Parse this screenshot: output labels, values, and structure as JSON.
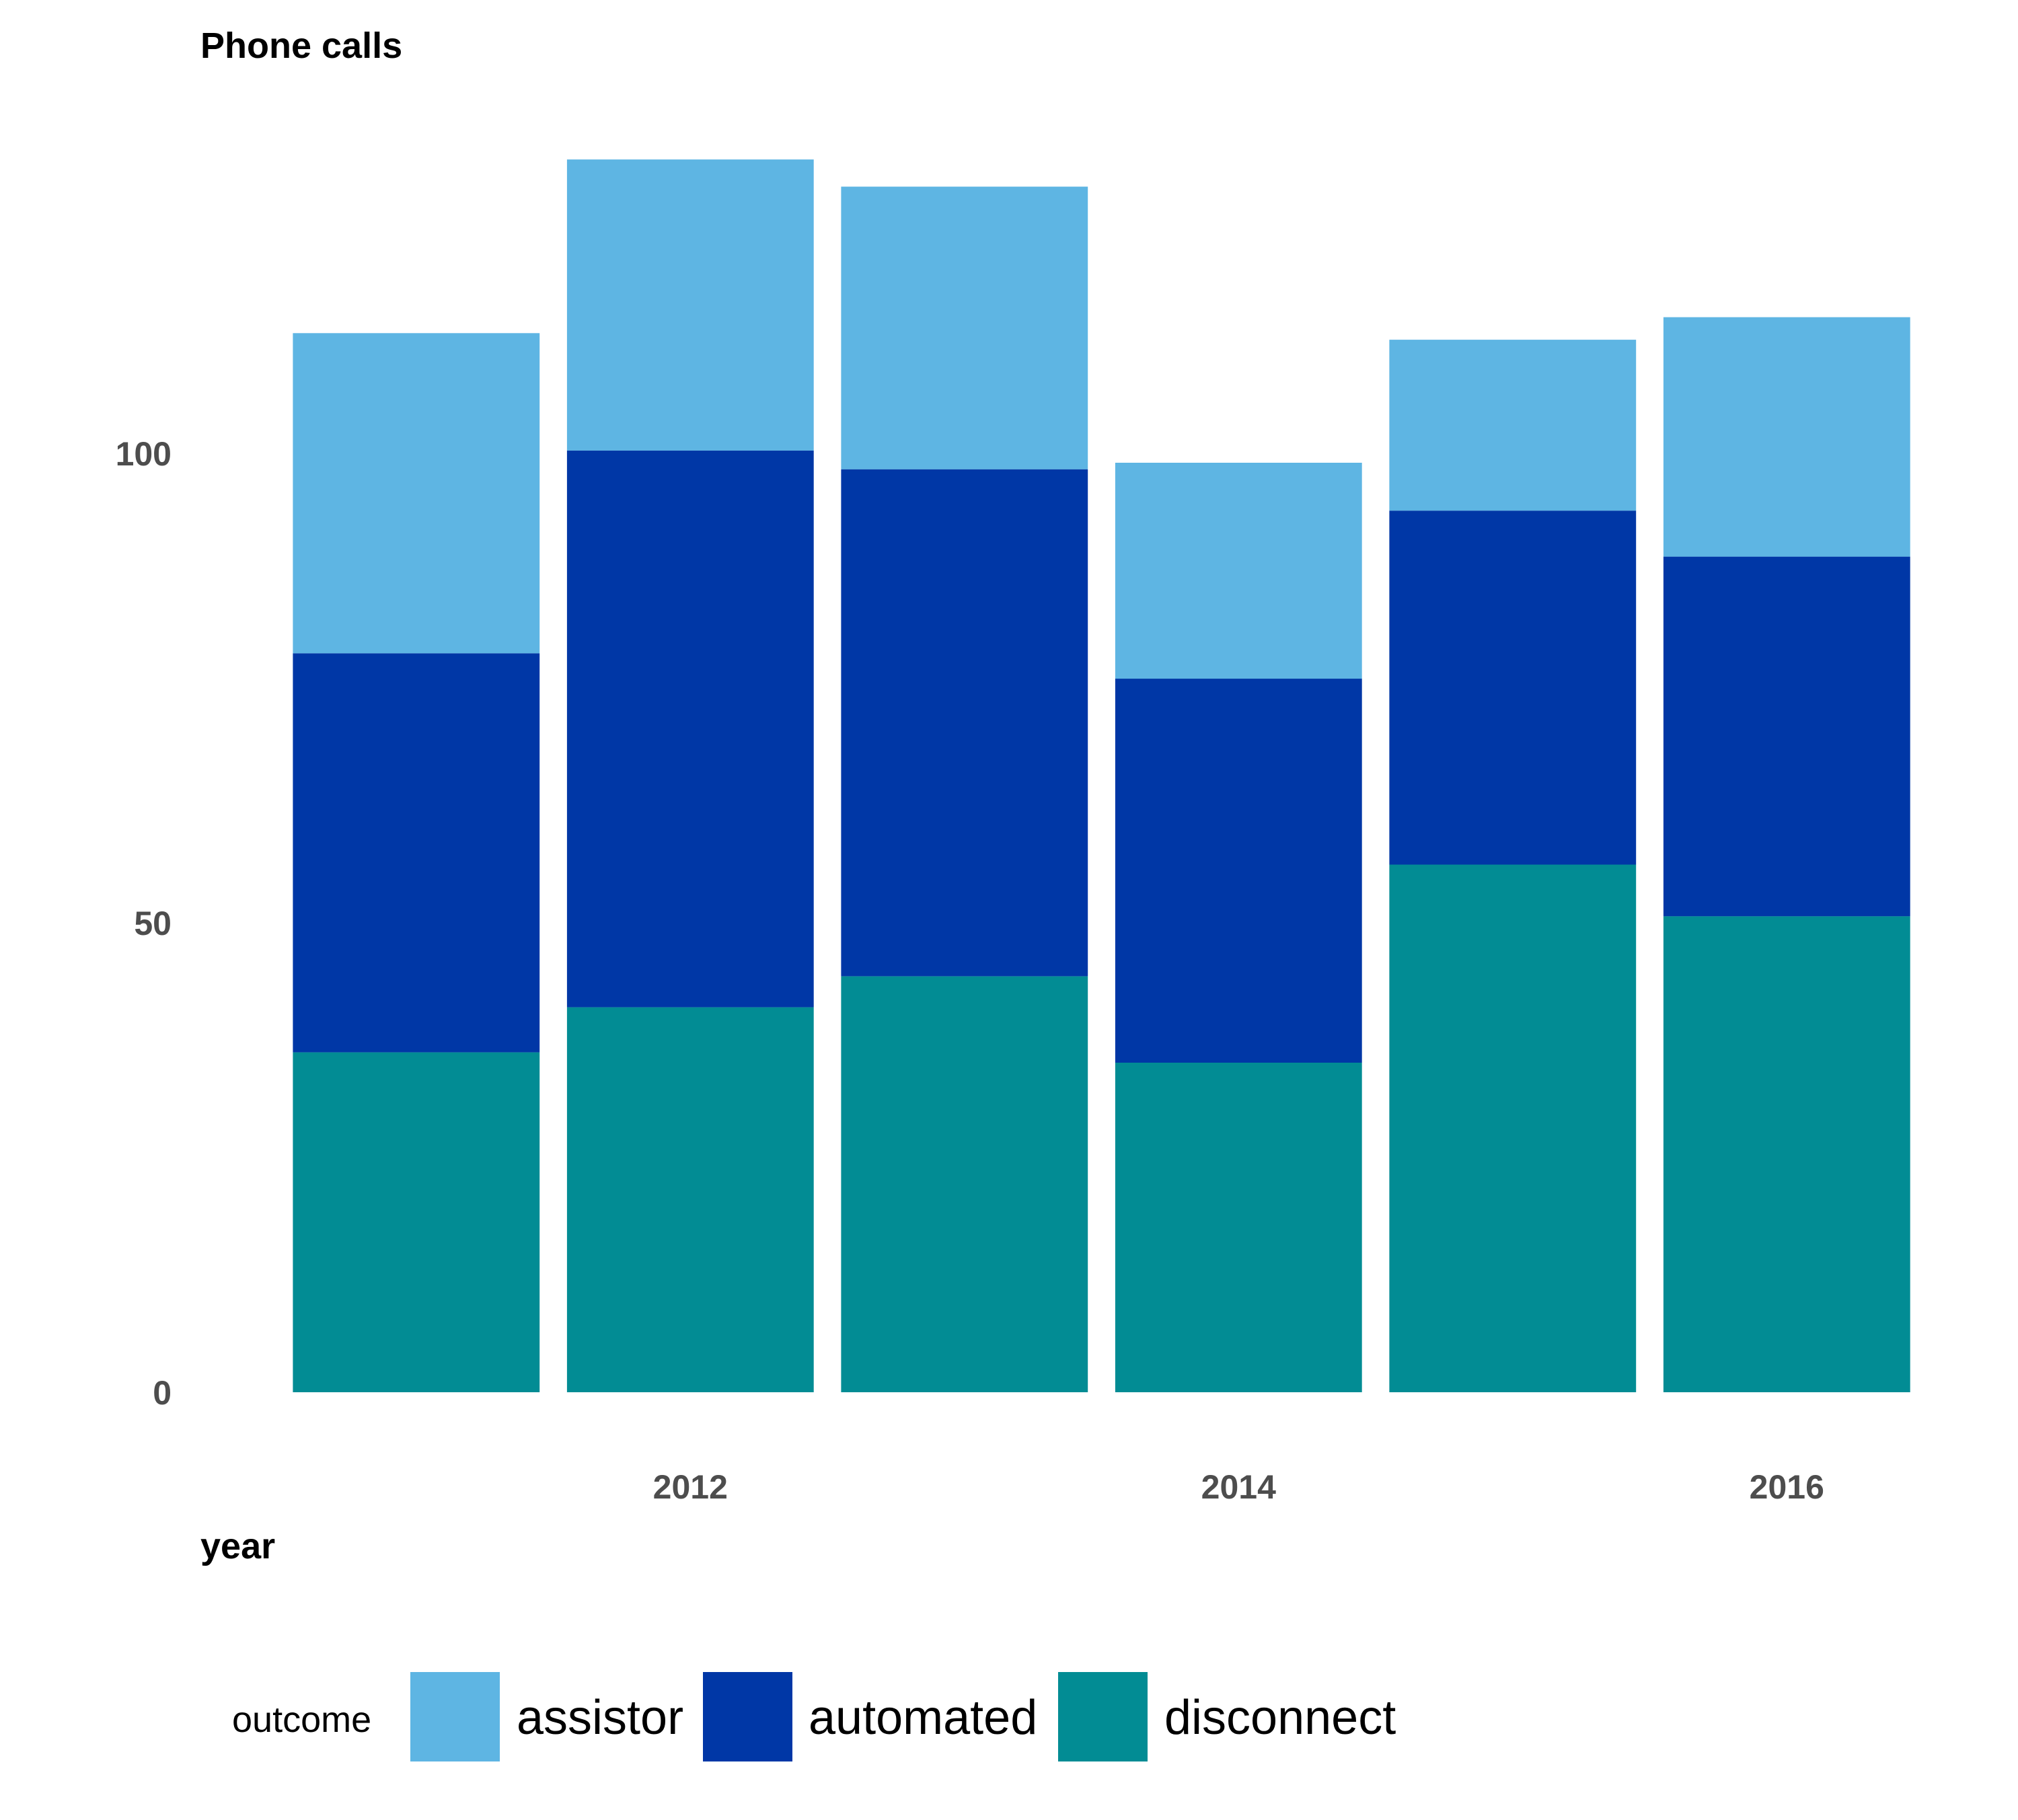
{
  "chart_data": {
    "type": "bar",
    "stacked": true,
    "title": "Phone calls",
    "xlabel": "year",
    "ylabel": "",
    "x": [
      2011,
      2012,
      2013,
      2014,
      2015,
      2016
    ],
    "x_ticks": [
      2012,
      2014,
      2016
    ],
    "y_ticks": [
      0,
      50,
      100
    ],
    "ylim": [
      0,
      132
    ],
    "grid": false,
    "legend": {
      "title": "outcome",
      "placement": "bottom-left",
      "entries": [
        "assistor",
        "automated",
        "disconnect"
      ]
    },
    "series": [
      {
        "name": "disconnect",
        "color": "#028C94",
        "values": [
          36.2,
          41.0,
          44.3,
          35.1,
          56.2,
          50.7
        ]
      },
      {
        "name": "automated",
        "color": "#0037A6",
        "values": [
          42.5,
          59.3,
          54.0,
          40.9,
          37.7,
          38.3
        ]
      },
      {
        "name": "assistor",
        "color": "#5EB5E3",
        "values": [
          34.1,
          31.0,
          30.1,
          23.0,
          18.2,
          25.5
        ]
      }
    ]
  }
}
